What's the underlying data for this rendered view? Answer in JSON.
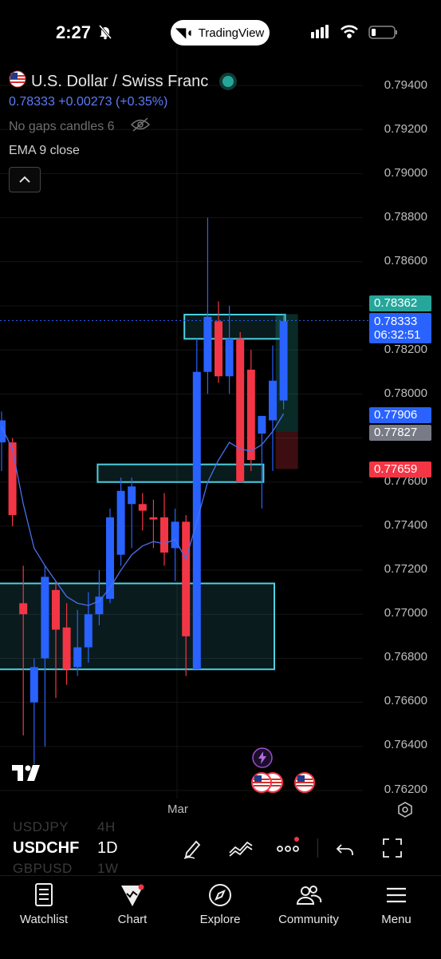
{
  "status_bar": {
    "time": "2:27",
    "app_pill": "TradingView"
  },
  "symbol": {
    "name": "U.S. Dollar / Swiss Franc",
    "price": "0.78333",
    "change": "+0.00273",
    "change_pct": "(+0.35%)",
    "gaps_label": "No gaps candles 6",
    "indicator": "EMA 9 close"
  },
  "colors": {
    "up": "#2962ff",
    "down": "#f23645",
    "zone": "#4dd0e1",
    "accent_green": "#26a69a"
  },
  "price_axis": {
    "labels": [
      "0.79400",
      "0.79200",
      "0.79000",
      "0.78800",
      "0.78600",
      "0.78200",
      "0.78000",
      "0.77600",
      "0.77400",
      "0.77200",
      "0.77000",
      "0.76800",
      "0.76600",
      "0.76400",
      "0.76200"
    ],
    "badges": [
      {
        "text": "0.78362",
        "color": "#26a69a"
      },
      {
        "text": "0.78333",
        "sub": "06:32:51",
        "color": "#2962ff"
      },
      {
        "text": "0.77906",
        "color": "#2962ff"
      },
      {
        "text": "0.77827",
        "color": "#787b86"
      },
      {
        "text": "0.77659",
        "color": "#f23645"
      }
    ]
  },
  "time_axis": {
    "label": "Mar"
  },
  "symbol_list": {
    "prev": "USDJPY",
    "prev_tf": "4H",
    "current": "USDCHF",
    "current_tf": "1D",
    "next": "GBPUSD",
    "next_tf": "1W"
  },
  "nav": {
    "watchlist": "Watchlist",
    "chart": "Chart",
    "explore": "Explore",
    "community": "Community",
    "menu": "Menu"
  },
  "chart_data": {
    "type": "candlestick",
    "title": "",
    "ylim": [
      0.7618,
      0.795
    ],
    "candles": [
      {
        "o": 0.7788,
        "h": 0.7792,
        "l": 0.7765,
        "c": 0.7778,
        "dir": "up"
      },
      {
        "o": 0.7778,
        "h": 0.778,
        "l": 0.774,
        "c": 0.7745,
        "dir": "down"
      },
      {
        "o": 0.77,
        "h": 0.7722,
        "l": 0.7645,
        "c": 0.7705,
        "dir": "down"
      },
      {
        "o": 0.766,
        "h": 0.768,
        "l": 0.7632,
        "c": 0.7676,
        "dir": "up"
      },
      {
        "o": 0.768,
        "h": 0.7722,
        "l": 0.764,
        "c": 0.7717,
        "dir": "up"
      },
      {
        "o": 0.7711,
        "h": 0.7715,
        "l": 0.7662,
        "c": 0.7693,
        "dir": "down"
      },
      {
        "o": 0.7694,
        "h": 0.7705,
        "l": 0.7668,
        "c": 0.7675,
        "dir": "down"
      },
      {
        "o": 0.7676,
        "h": 0.7702,
        "l": 0.7672,
        "c": 0.7685,
        "dir": "up"
      },
      {
        "o": 0.7685,
        "h": 0.771,
        "l": 0.7678,
        "c": 0.77,
        "dir": "up"
      },
      {
        "o": 0.77,
        "h": 0.772,
        "l": 0.7695,
        "c": 0.7708,
        "dir": "up"
      },
      {
        "o": 0.7707,
        "h": 0.7748,
        "l": 0.7705,
        "c": 0.7744,
        "dir": "up"
      },
      {
        "o": 0.7727,
        "h": 0.7762,
        "l": 0.7722,
        "c": 0.7756,
        "dir": "up"
      },
      {
        "o": 0.775,
        "h": 0.7762,
        "l": 0.773,
        "c": 0.7758,
        "dir": "up"
      },
      {
        "o": 0.775,
        "h": 0.7755,
        "l": 0.7738,
        "c": 0.7747,
        "dir": "down"
      },
      {
        "o": 0.7744,
        "h": 0.7752,
        "l": 0.773,
        "c": 0.7743,
        "dir": "down"
      },
      {
        "o": 0.7744,
        "h": 0.7755,
        "l": 0.7722,
        "c": 0.7728,
        "dir": "down"
      },
      {
        "o": 0.773,
        "h": 0.7748,
        "l": 0.7715,
        "c": 0.7742,
        "dir": "up"
      },
      {
        "o": 0.7742,
        "h": 0.7745,
        "l": 0.7672,
        "c": 0.769,
        "dir": "down"
      },
      {
        "o": 0.7675,
        "h": 0.7825,
        "l": 0.7675,
        "c": 0.781,
        "dir": "up"
      },
      {
        "o": 0.781,
        "h": 0.788,
        "l": 0.78,
        "c": 0.7835,
        "dir": "up"
      },
      {
        "o": 0.7833,
        "h": 0.7842,
        "l": 0.7805,
        "c": 0.7808,
        "dir": "down"
      },
      {
        "o": 0.7808,
        "h": 0.784,
        "l": 0.78,
        "c": 0.7825,
        "dir": "up"
      },
      {
        "o": 0.7825,
        "h": 0.7828,
        "l": 0.776,
        "c": 0.776,
        "dir": "down"
      },
      {
        "o": 0.7811,
        "h": 0.782,
        "l": 0.7765,
        "c": 0.777,
        "dir": "down"
      },
      {
        "o": 0.7782,
        "h": 0.779,
        "l": 0.7748,
        "c": 0.779,
        "dir": "up"
      },
      {
        "o": 0.7788,
        "h": 0.7822,
        "l": 0.7765,
        "c": 0.7806,
        "dir": "up"
      },
      {
        "o": 0.7797,
        "h": 0.7836,
        "l": 0.7793,
        "c": 0.7833,
        "dir": "up"
      }
    ],
    "ema9": [
      0.7785,
      0.7775,
      0.775,
      0.773,
      0.7722,
      0.7715,
      0.7708,
      0.7705,
      0.7704,
      0.7706,
      0.7712,
      0.772,
      0.7727,
      0.7731,
      0.7733,
      0.7732,
      0.7734,
      0.7725,
      0.7742,
      0.776,
      0.777,
      0.7778,
      0.7775,
      0.7774,
      0.7777,
      0.7783,
      0.7791
    ],
    "zones": [
      {
        "from": 0.7836,
        "to": 0.7825,
        "x0": 17,
        "x1": 26
      },
      {
        "from": 0.7768,
        "to": 0.776,
        "x0": 9,
        "x1": 24
      },
      {
        "from": 0.7714,
        "to": 0.7675,
        "x0": -1,
        "x1": 25
      }
    ]
  }
}
